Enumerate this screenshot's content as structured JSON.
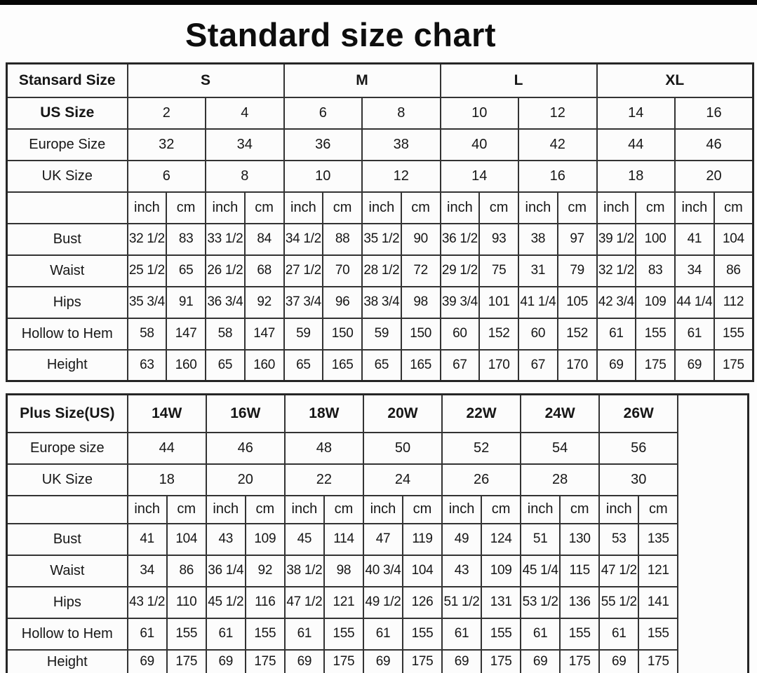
{
  "title": "Standard size chart",
  "colors": {
    "top_bar": "#060606",
    "border": "#333333",
    "text": "#161616",
    "cell_background": "#fcfcfc"
  },
  "standard_table": {
    "corner_label": "Stansard Size",
    "size_groups": [
      "S",
      "M",
      "L",
      "XL"
    ],
    "size_rows": [
      {
        "label": "US Size",
        "bold": true,
        "values": [
          "2",
          "4",
          "6",
          "8",
          "10",
          "12",
          "14",
          "16"
        ]
      },
      {
        "label": "Europe Size",
        "bold": false,
        "values": [
          "32",
          "34",
          "36",
          "38",
          "40",
          "42",
          "44",
          "46"
        ]
      },
      {
        "label": "UK Size",
        "bold": false,
        "values": [
          "6",
          "8",
          "10",
          "12",
          "14",
          "16",
          "18",
          "20"
        ]
      }
    ],
    "unit_labels": [
      "inch",
      "cm"
    ],
    "measure_rows": [
      {
        "label": "Bust",
        "values": [
          "32 1/2",
          "83",
          "33 1/2",
          "84",
          "34 1/2",
          "88",
          "35 1/2",
          "90",
          "36 1/2",
          "93",
          "38",
          "97",
          "39 1/2",
          "100",
          "41",
          "104"
        ]
      },
      {
        "label": "Waist",
        "values": [
          "25 1/2",
          "65",
          "26 1/2",
          "68",
          "27 1/2",
          "70",
          "28 1/2",
          "72",
          "29 1/2",
          "75",
          "31",
          "79",
          "32 1/2",
          "83",
          "34",
          "86"
        ]
      },
      {
        "label": "Hips",
        "values": [
          "35 3/4",
          "91",
          "36 3/4",
          "92",
          "37 3/4",
          "96",
          "38 3/4",
          "98",
          "39 3/4",
          "101",
          "41 1/4",
          "105",
          "42 3/4",
          "109",
          "44 1/4",
          "112"
        ]
      },
      {
        "label": "Hollow to Hem",
        "values": [
          "58",
          "147",
          "58",
          "147",
          "59",
          "150",
          "59",
          "150",
          "60",
          "152",
          "60",
          "152",
          "61",
          "155",
          "61",
          "155"
        ]
      },
      {
        "label": "Height",
        "values": [
          "63",
          "160",
          "65",
          "160",
          "65",
          "165",
          "65",
          "165",
          "67",
          "170",
          "67",
          "170",
          "69",
          "175",
          "69",
          "175"
        ]
      }
    ]
  },
  "plus_table": {
    "corner_label": "Plus Size(US)",
    "size_groups": [
      "14W",
      "16W",
      "18W",
      "20W",
      "22W",
      "24W",
      "26W"
    ],
    "size_rows": [
      {
        "label": "Europe size",
        "bold": false,
        "values": [
          "44",
          "46",
          "48",
          "50",
          "52",
          "54",
          "56"
        ]
      },
      {
        "label": "UK Size",
        "bold": false,
        "values": [
          "18",
          "20",
          "22",
          "24",
          "26",
          "28",
          "30"
        ]
      }
    ],
    "unit_labels": [
      "inch",
      "cm"
    ],
    "has_trailing_blank_column": true,
    "measure_rows": [
      {
        "label": "Bust",
        "values": [
          "41",
          "104",
          "43",
          "109",
          "45",
          "114",
          "47",
          "119",
          "49",
          "124",
          "51",
          "130",
          "53",
          "135"
        ]
      },
      {
        "label": "Waist",
        "values": [
          "34",
          "86",
          "36 1/4",
          "92",
          "38 1/2",
          "98",
          "40 3/4",
          "104",
          "43",
          "109",
          "45 1/4",
          "115",
          "47 1/2",
          "121"
        ]
      },
      {
        "label": "Hips",
        "values": [
          "43 1/2",
          "110",
          "45 1/2",
          "116",
          "47 1/2",
          "121",
          "49 1/2",
          "126",
          "51 1/2",
          "131",
          "53 1/2",
          "136",
          "55 1/2",
          "141"
        ]
      },
      {
        "label": "Hollow to Hem",
        "values": [
          "61",
          "155",
          "61",
          "155",
          "61",
          "155",
          "61",
          "155",
          "61",
          "155",
          "61",
          "155",
          "61",
          "155"
        ]
      },
      {
        "label": "Height",
        "values": [
          "69",
          "175",
          "69",
          "175",
          "69",
          "175",
          "69",
          "175",
          "69",
          "175",
          "69",
          "175",
          "69",
          "175"
        ]
      }
    ]
  }
}
